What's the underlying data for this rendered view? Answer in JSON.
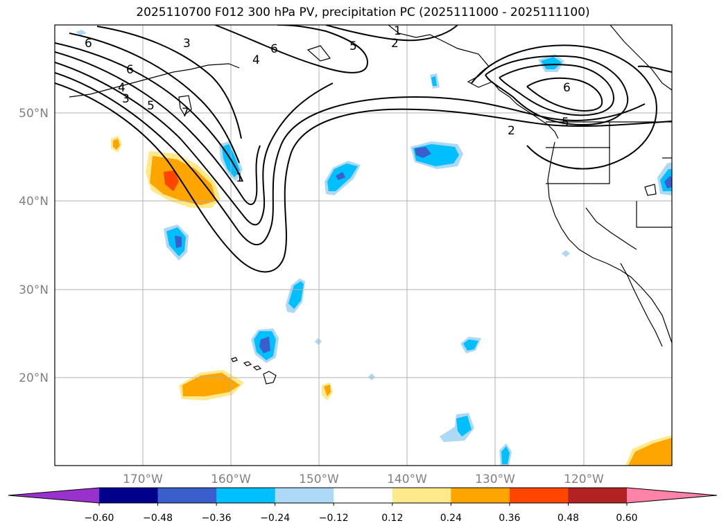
{
  "title": "2025110700 F012 300 hPa PV, precipitation PC (2025111000 - 2025111100)",
  "axes": {
    "lon_labels": [
      "170°W",
      "160°W",
      "150°W",
      "140°W",
      "130°W",
      "120°W"
    ],
    "lat_labels": [
      "50°N",
      "40°N",
      "30°N",
      "20°N"
    ],
    "lon_range": [
      -180,
      -110
    ],
    "lat_range": [
      10,
      60
    ]
  },
  "contour_labels": [
    "6",
    "3",
    "4",
    "5",
    "1",
    "2",
    "6",
    "4",
    "3",
    "5",
    "6",
    "7",
    "2",
    "6",
    "5",
    "1"
  ],
  "colorbar": {
    "ticks": [
      "−0.60",
      "−0.48",
      "−0.36",
      "−0.24",
      "−0.12",
      "0.12",
      "0.24",
      "0.36",
      "0.48",
      "0.60"
    ],
    "colors": [
      "#9932cc",
      "#00008b",
      "#3a5fcd",
      "#00bfff",
      "#add8f6",
      "#ffffff",
      "#ffe98a",
      "#ffa500",
      "#ff4500",
      "#b22222",
      "#ff82a8"
    ]
  },
  "colors": {
    "positive_light": "#ffe98a",
    "positive_mid": "#ffa500",
    "positive_strong": "#ff4500",
    "negative_light": "#add8f6",
    "negative_mid": "#00bfff",
    "negative_strong": "#3a5fcd"
  }
}
